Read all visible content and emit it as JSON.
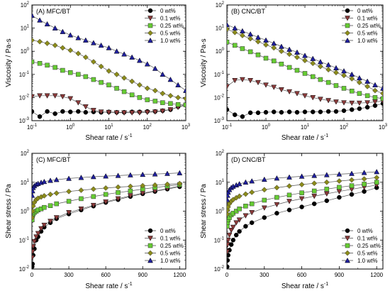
{
  "figure": {
    "legend_labels": [
      "0 wt%",
      "0.1 wt%",
      "0.25 wt%",
      "0.5 wt%",
      "1.0 wt%"
    ]
  },
  "chart_data": [
    {
      "type": "line",
      "panel_label": "(A) MFC/BT",
      "xlabel": "Shear rate / s⁻¹",
      "ylabel": "Viscosity / Pa-s",
      "xscale": "log",
      "yscale": "log",
      "xlim": [
        0.1,
        1000
      ],
      "ylim": [
        0.001,
        100
      ],
      "xticks": [
        0.1,
        1,
        10,
        100,
        1000
      ],
      "yticks": [
        0.001,
        0.01,
        0.1,
        1,
        10,
        100
      ],
      "legend_position": "top-right",
      "grid": false,
      "series": [
        {
          "name": "0 wt%",
          "marker": "circle",
          "color": "#000000",
          "x": [
            0.1,
            0.16,
            0.25,
            0.4,
            0.63,
            1,
            1.6,
            2.5,
            4,
            6.3,
            10,
            16,
            25,
            40,
            63,
            100,
            160,
            250,
            400,
            630,
            1000
          ],
          "y": [
            0.0025,
            0.0015,
            0.0025,
            0.002,
            0.0025,
            0.0024,
            0.0025,
            0.0023,
            0.0024,
            0.0023,
            0.0024,
            0.0023,
            0.0023,
            0.0024,
            0.0024,
            0.0025,
            0.0025,
            0.0027,
            0.003,
            0.004,
            0.005
          ]
        },
        {
          "name": "0.1 wt%",
          "marker": "triangle-down",
          "color": "#8b3a3a",
          "x": [
            0.1,
            0.16,
            0.25,
            0.4,
            0.63,
            1,
            1.6,
            2.5,
            4,
            6.3,
            10,
            16,
            25,
            40,
            63,
            100,
            160,
            250,
            400,
            630,
            1000
          ],
          "y": [
            0.011,
            0.012,
            0.012,
            0.012,
            0.011,
            0.009,
            0.006,
            0.004,
            0.0028,
            0.0024,
            0.0023,
            0.0022,
            0.0022,
            0.0022,
            0.0022,
            0.0023,
            0.0024,
            0.0026,
            0.003,
            0.0038,
            0.0045
          ]
        },
        {
          "name": "0.25 wt%",
          "marker": "square",
          "color": "#66cc33",
          "x": [
            0.1,
            0.16,
            0.25,
            0.4,
            0.63,
            1,
            1.6,
            2.5,
            4,
            6.3,
            10,
            16,
            25,
            40,
            63,
            100,
            160,
            250,
            400,
            630,
            1000
          ],
          "y": [
            0.35,
            0.3,
            0.25,
            0.2,
            0.15,
            0.12,
            0.1,
            0.08,
            0.06,
            0.045,
            0.035,
            0.025,
            0.018,
            0.013,
            0.01,
            0.008,
            0.007,
            0.006,
            0.0055,
            0.005,
            0.0048
          ]
        },
        {
          "name": "0.5 wt%",
          "marker": "diamond",
          "color": "#8b8b1a",
          "x": [
            0.1,
            0.16,
            0.25,
            0.4,
            0.63,
            1,
            1.6,
            2.5,
            4,
            6.3,
            10,
            16,
            25,
            40,
            63,
            100,
            160,
            250,
            400,
            630,
            1000
          ],
          "y": [
            3,
            2.6,
            2.2,
            1.8,
            1.4,
            1.1,
            0.8,
            0.55,
            0.35,
            0.22,
            0.14,
            0.1,
            0.07,
            0.05,
            0.035,
            0.025,
            0.02,
            0.015,
            0.012,
            0.01,
            0.009
          ]
        },
        {
          "name": "1.0 wt%",
          "marker": "triangle-up",
          "color": "#1f1f9e",
          "x": [
            0.1,
            0.16,
            0.25,
            0.4,
            0.63,
            1,
            1.6,
            2.5,
            4,
            6.3,
            10,
            16,
            25,
            40,
            63,
            100,
            160,
            250,
            400,
            630,
            1000
          ],
          "y": [
            35,
            22,
            15,
            10,
            7,
            5,
            3.8,
            3,
            2.3,
            1.8,
            1.4,
            1.0,
            0.75,
            0.55,
            0.4,
            0.28,
            0.18,
            0.1,
            0.06,
            0.035,
            0.02
          ]
        }
      ]
    },
    {
      "type": "line",
      "panel_label": "(B) CNC/BT",
      "xlabel": "Shear rate / s⁻¹",
      "ylabel": "Viscosity / Pa-s",
      "xscale": "log",
      "yscale": "log",
      "xlim": [
        0.1,
        1000
      ],
      "ylim": [
        0.001,
        100
      ],
      "xticks": [
        0.1,
        1,
        10,
        100,
        1000
      ],
      "yticks": [
        0.001,
        0.01,
        0.1,
        1,
        10,
        100
      ],
      "legend_position": "top-right",
      "grid": false,
      "series": [
        {
          "name": "0 wt%",
          "marker": "circle",
          "color": "#000000",
          "x": [
            0.1,
            0.16,
            0.25,
            0.4,
            0.63,
            1,
            1.6,
            2.5,
            4,
            6.3,
            10,
            16,
            25,
            40,
            63,
            100,
            160,
            250,
            400,
            630,
            1000
          ],
          "y": [
            0.003,
            0.0018,
            0.0015,
            0.0022,
            0.0022,
            0.0023,
            0.0024,
            0.0023,
            0.0024,
            0.0023,
            0.0024,
            0.0024,
            0.0024,
            0.0025,
            0.0025,
            0.0027,
            0.003,
            0.0033,
            0.0038,
            0.0045,
            0.0055
          ]
        },
        {
          "name": "0.1 wt%",
          "marker": "triangle-down",
          "color": "#8b3a3a",
          "x": [
            0.1,
            0.16,
            0.25,
            0.4,
            0.63,
            1,
            1.6,
            2.5,
            4,
            6.3,
            10,
            16,
            25,
            40,
            63,
            100,
            160,
            250,
            400,
            630,
            1000
          ],
          "y": [
            0.03,
            0.055,
            0.06,
            0.055,
            0.045,
            0.035,
            0.028,
            0.022,
            0.018,
            0.015,
            0.012,
            0.01,
            0.0085,
            0.0075,
            0.0065,
            0.006,
            0.0058,
            0.0058,
            0.006,
            0.0065,
            0.007
          ]
        },
        {
          "name": "0.25 wt%",
          "marker": "square",
          "color": "#66cc33",
          "x": [
            0.1,
            0.16,
            0.25,
            0.4,
            0.63,
            1,
            1.6,
            2.5,
            4,
            6.3,
            10,
            16,
            25,
            40,
            63,
            100,
            160,
            250,
            400,
            630,
            1000
          ],
          "y": [
            2.5,
            1.8,
            1.3,
            0.95,
            0.7,
            0.5,
            0.38,
            0.28,
            0.2,
            0.15,
            0.11,
            0.08,
            0.06,
            0.045,
            0.033,
            0.025,
            0.019,
            0.015,
            0.012,
            0.01,
            0.009
          ]
        },
        {
          "name": "0.5 wt%",
          "marker": "diamond",
          "color": "#8b8b1a",
          "x": [
            0.1,
            0.16,
            0.25,
            0.4,
            0.63,
            1,
            1.6,
            2.5,
            4,
            6.3,
            10,
            16,
            25,
            40,
            63,
            100,
            160,
            250,
            400,
            630,
            1000
          ],
          "y": [
            9,
            6.5,
            4.8,
            3.5,
            2.6,
            1.9,
            1.4,
            1.0,
            0.75,
            0.55,
            0.4,
            0.3,
            0.22,
            0.16,
            0.12,
            0.09,
            0.065,
            0.045,
            0.03,
            0.02,
            0.015
          ]
        },
        {
          "name": "1.0 wt%",
          "marker": "triangle-up",
          "color": "#1f1f9e",
          "x": [
            0.1,
            0.16,
            0.25,
            0.4,
            0.63,
            1,
            1.6,
            2.5,
            4,
            6.3,
            10,
            16,
            25,
            40,
            63,
            100,
            160,
            250,
            400,
            630,
            1000
          ],
          "y": [
            14,
            10,
            7.5,
            5.5,
            4,
            3,
            2.2,
            1.6,
            1.2,
            0.9,
            0.65,
            0.48,
            0.35,
            0.26,
            0.19,
            0.14,
            0.1,
            0.07,
            0.05,
            0.035,
            0.025
          ]
        }
      ]
    },
    {
      "type": "line",
      "panel_label": "(C) MFC/BT",
      "xlabel": "Shear rate / s⁻¹",
      "ylabel": "Shear stress / Pa",
      "xscale": "linear",
      "yscale": "log",
      "xlim": [
        0,
        1250
      ],
      "ylim": [
        0.01,
        100
      ],
      "xticks": [
        0,
        300,
        600,
        900,
        1200
      ],
      "yticks": [
        0.01,
        0.1,
        1,
        10,
        100
      ],
      "legend_position": "bottom-right",
      "grid": false,
      "series": [
        {
          "name": "0 wt%",
          "marker": "circle",
          "color": "#000000",
          "x": [
            2,
            5,
            10,
            20,
            35,
            50,
            75,
            100,
            150,
            200,
            300,
            400,
            500,
            600,
            700,
            800,
            900,
            1000,
            1100,
            1200
          ],
          "y": [
            0.012,
            0.015,
            0.03,
            0.05,
            0.1,
            0.13,
            0.2,
            0.28,
            0.4,
            0.55,
            0.8,
            1.1,
            1.5,
            2,
            2.5,
            3.2,
            4,
            4.8,
            5.8,
            7
          ]
        },
        {
          "name": "0.1 wt%",
          "marker": "triangle-down",
          "color": "#8b3a3a",
          "x": [
            2,
            5,
            10,
            20,
            35,
            50,
            75,
            100,
            150,
            200,
            300,
            400,
            500,
            600,
            700,
            800,
            900,
            1000,
            1100,
            1200
          ],
          "y": [
            0.025,
            0.04,
            0.06,
            0.09,
            0.13,
            0.17,
            0.25,
            0.33,
            0.45,
            0.6,
            0.9,
            1.2,
            1.6,
            2.1,
            2.7,
            3.4,
            4.2,
            5,
            6,
            7.5
          ]
        },
        {
          "name": "0.25 wt%",
          "marker": "square",
          "color": "#66cc33",
          "x": [
            2,
            5,
            10,
            20,
            35,
            50,
            75,
            100,
            150,
            200,
            300,
            400,
            500,
            600,
            700,
            800,
            900,
            1000,
            1100,
            1200
          ],
          "y": [
            0.5,
            0.7,
            0.8,
            0.9,
            1,
            1.1,
            1.2,
            1.35,
            1.55,
            1.8,
            2.2,
            2.7,
            3.2,
            3.8,
            4.4,
            5,
            5.8,
            6.6,
            7.4,
            8.3
          ]
        },
        {
          "name": "0.5 wt%",
          "marker": "diamond",
          "color": "#8b8b1a",
          "x": [
            2,
            5,
            10,
            20,
            35,
            50,
            75,
            100,
            150,
            200,
            300,
            400,
            500,
            600,
            700,
            800,
            900,
            1000,
            1100,
            1200
          ],
          "y": [
            0.6,
            1,
            1.5,
            2,
            2.5,
            2.8,
            3.1,
            3.4,
            3.8,
            4.2,
            4.8,
            5.3,
            5.8,
            6.3,
            6.8,
            7.2,
            7.6,
            8,
            8.5,
            9
          ]
        },
        {
          "name": "1.0 wt%",
          "marker": "triangle-up",
          "color": "#1f1f9e",
          "x": [
            2,
            5,
            10,
            20,
            35,
            50,
            75,
            100,
            150,
            200,
            300,
            400,
            500,
            600,
            700,
            800,
            900,
            1000,
            1100,
            1200
          ],
          "y": [
            3.5,
            5,
            6.5,
            7.5,
            8.5,
            9,
            9.8,
            10.5,
            11.5,
            12.3,
            13.5,
            14.5,
            15.5,
            16.3,
            17,
            17.8,
            18.5,
            19.2,
            20,
            21
          ]
        }
      ]
    },
    {
      "type": "line",
      "panel_label": "(D) CNC/BT",
      "xlabel": "Shear rate / s⁻¹",
      "ylabel": "Shear stress / Pa",
      "xscale": "linear",
      "yscale": "log",
      "xlim": [
        0,
        1250
      ],
      "ylim": [
        0.01,
        100
      ],
      "xticks": [
        0,
        300,
        600,
        900,
        1200
      ],
      "yticks": [
        0.01,
        0.1,
        1,
        10,
        100
      ],
      "legend_position": "bottom-right",
      "grid": false,
      "series": [
        {
          "name": "0 wt%",
          "marker": "circle",
          "color": "#000000",
          "x": [
            2,
            5,
            10,
            20,
            35,
            50,
            75,
            100,
            150,
            200,
            300,
            400,
            500,
            600,
            700,
            800,
            900,
            1000,
            1100,
            1200
          ],
          "y": [
            0.012,
            0.02,
            0.03,
            0.045,
            0.07,
            0.1,
            0.15,
            0.2,
            0.3,
            0.4,
            0.6,
            0.85,
            1.1,
            1.4,
            1.8,
            2.3,
            3,
            3.8,
            4.8,
            6.5
          ]
        },
        {
          "name": "0.1 wt%",
          "marker": "triangle-down",
          "color": "#8b3a3a",
          "x": [
            2,
            5,
            10,
            20,
            35,
            50,
            75,
            100,
            150,
            200,
            300,
            400,
            500,
            600,
            700,
            800,
            900,
            1000,
            1100,
            1200
          ],
          "y": [
            0.04,
            0.07,
            0.1,
            0.15,
            0.22,
            0.28,
            0.4,
            0.5,
            0.7,
            0.9,
            1.3,
            1.7,
            2.2,
            2.7,
            3.3,
            4,
            4.8,
            5.7,
            6.8,
            8
          ]
        },
        {
          "name": "0.25 wt%",
          "marker": "square",
          "color": "#66cc33",
          "x": [
            2,
            5,
            10,
            20,
            35,
            50,
            75,
            100,
            150,
            200,
            300,
            400,
            500,
            600,
            700,
            800,
            900,
            1000,
            1100,
            1200
          ],
          "y": [
            0.3,
            0.4,
            0.5,
            0.6,
            0.75,
            0.85,
            1,
            1.2,
            1.5,
            1.8,
            2.4,
            3,
            3.6,
            4.3,
            5,
            5.8,
            6.7,
            7.6,
            8.6,
            10
          ]
        },
        {
          "name": "0.5 wt%",
          "marker": "diamond",
          "color": "#8b8b1a",
          "x": [
            2,
            5,
            10,
            20,
            35,
            50,
            75,
            100,
            150,
            200,
            300,
            400,
            500,
            600,
            700,
            800,
            900,
            1000,
            1100,
            1200
          ],
          "y": [
            0.8,
            1.1,
            1.4,
            1.8,
            2.2,
            2.5,
            2.9,
            3.3,
            3.9,
            4.5,
            5.5,
            6.5,
            7.4,
            8.3,
            9.2,
            10,
            11,
            12,
            13,
            14.5
          ]
        },
        {
          "name": "1.0 wt%",
          "marker": "triangle-up",
          "color": "#1f1f9e",
          "x": [
            2,
            5,
            10,
            20,
            35,
            50,
            75,
            100,
            150,
            200,
            300,
            400,
            500,
            600,
            700,
            800,
            900,
            1000,
            1100,
            1200
          ],
          "y": [
            2.5,
            3.5,
            4.5,
            5.5,
            6.5,
            7.2,
            8,
            8.8,
            10,
            11,
            12.5,
            13.8,
            15,
            16,
            17,
            18,
            19,
            20,
            21.5,
            23
          ]
        }
      ]
    }
  ]
}
